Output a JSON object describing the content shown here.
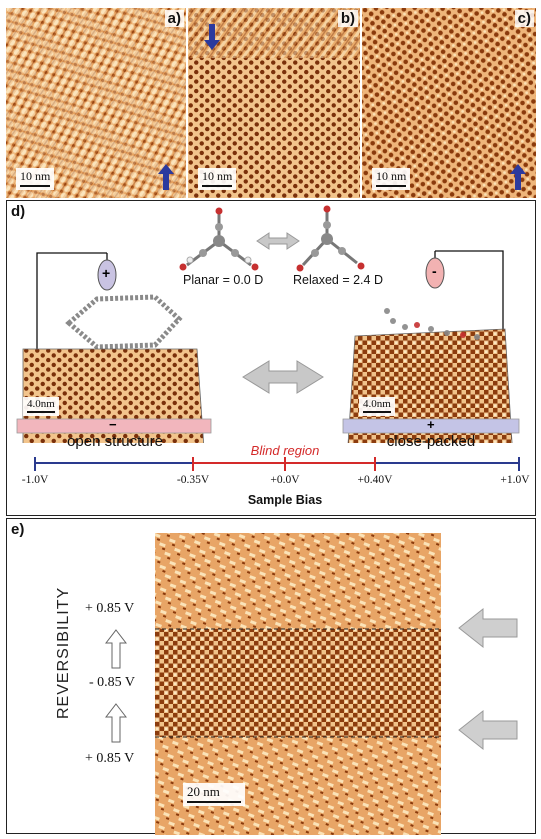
{
  "panels": {
    "a": {
      "label": "a)",
      "scale": "10 nm"
    },
    "b": {
      "label": "b)",
      "scale": "10 nm"
    },
    "c": {
      "label": "c)",
      "scale": "10 nm"
    },
    "d": {
      "label": "d)",
      "planar": "Planar = 0.0 D",
      "relaxed": "Relaxed = 2.4 D",
      "left_sign": "+",
      "right_sign": "-",
      "left_plate_sign": "−",
      "right_plate_sign": "+",
      "left_scale": "4.0nm",
      "right_scale": "4.0nm",
      "open": "open structure",
      "close": "close-packed",
      "blind": "Blind region",
      "ticks": [
        "-1.0V",
        "-0.35V",
        "+0.0V",
        "+0.40V",
        "+1.0V"
      ],
      "bias_title": "Sample Bias"
    },
    "e": {
      "label": "e)",
      "reversibility": "REVERSIBILITY",
      "v_top": "+ 0.85 V",
      "v_mid": "- 0.85 V",
      "v_bot": "+ 0.85 V",
      "scale": "20 nm"
    }
  },
  "colors": {
    "stm_light": "#f6d8a6",
    "stm_dark": "#8a3a0c",
    "stm_mid": "#d98a3e",
    "arrow_blue": "#2b3a9e",
    "blind_red": "#d42a2a",
    "axis_blue": "#2a3a8e",
    "plate_pink": "#f2b6bd",
    "plate_lavender": "#c4c4e6"
  }
}
